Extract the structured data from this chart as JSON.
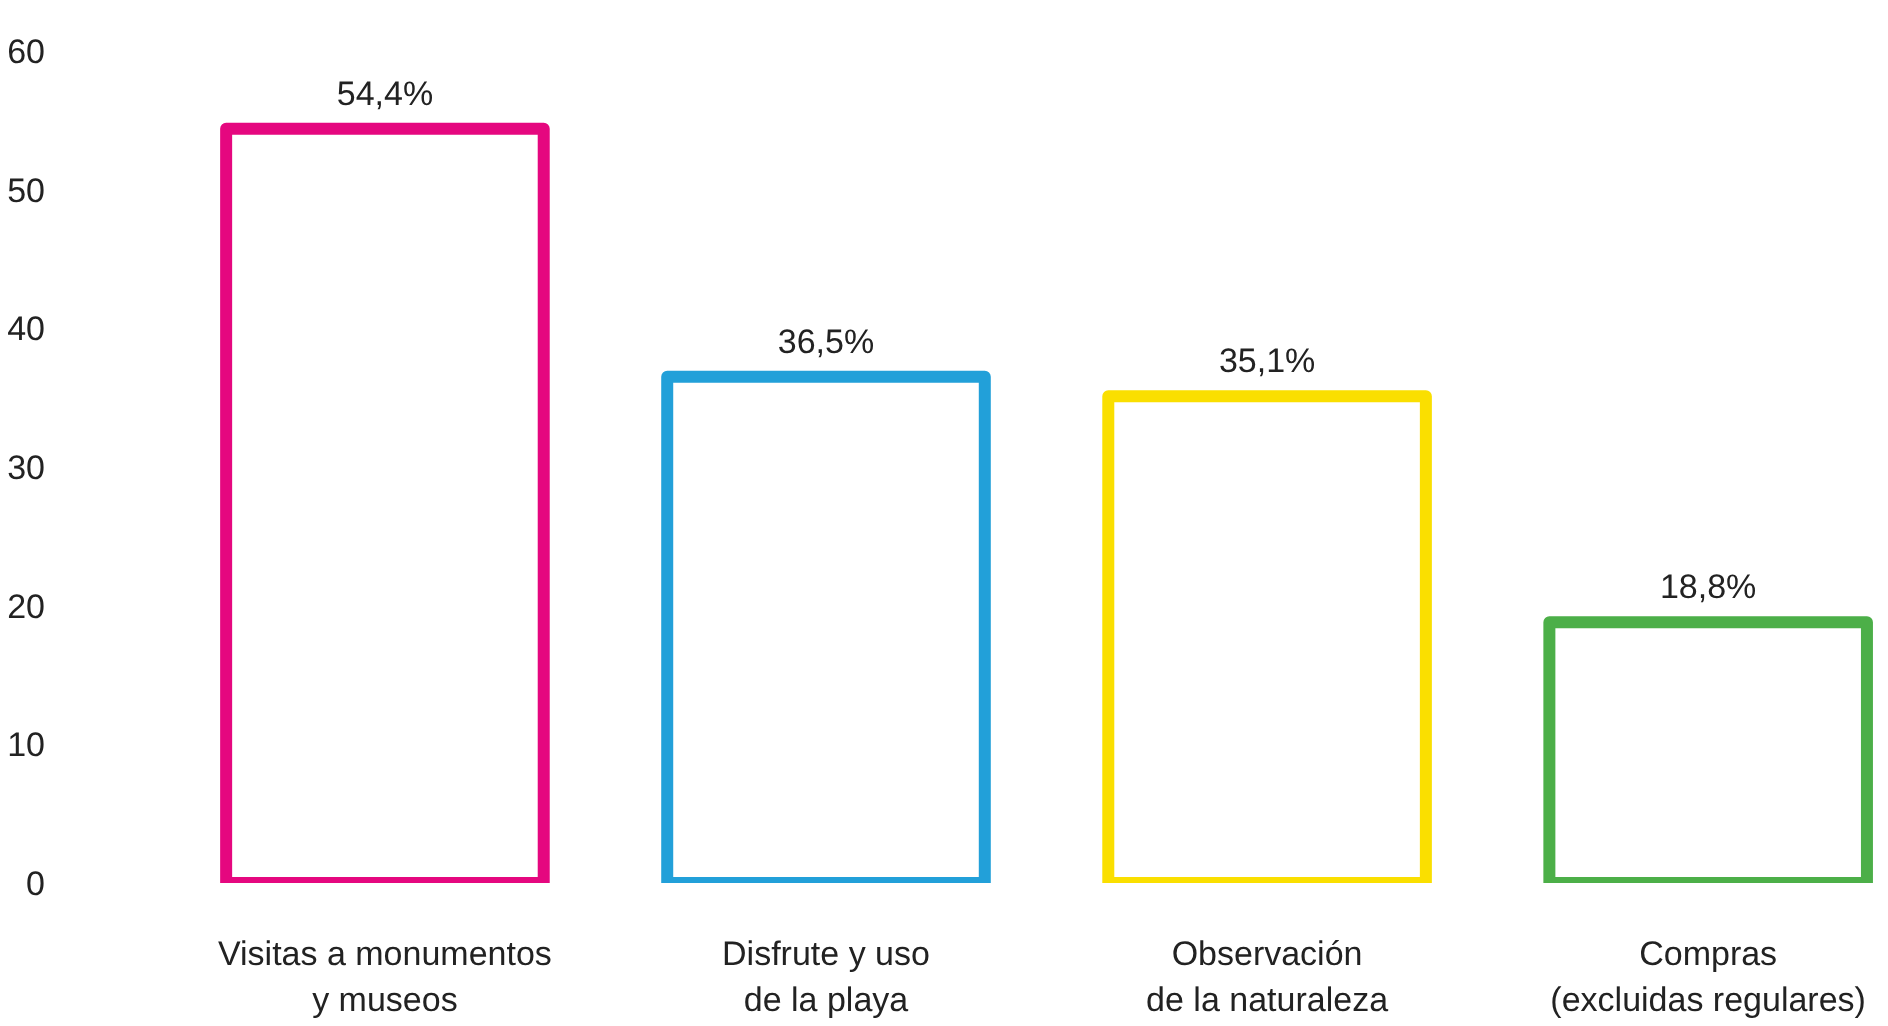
{
  "chart_data": {
    "type": "bar",
    "categories": [
      "Visitas a monumentos\ny museos",
      "Disfrute y uso\nde la playa",
      "Observación\nde la naturaleza",
      "Compras\n(excluidas regulares)"
    ],
    "values": [
      54.4,
      36.5,
      35.1,
      18.8
    ],
    "colors": [
      "#e5077f",
      "#22a0d9",
      "#fadf00",
      "#4caf48"
    ],
    "value_labels": [
      "54,4%",
      "36,5%",
      "35,1%",
      "18,8%"
    ],
    "ylim": [
      0,
      60
    ],
    "yticks": [
      0,
      10,
      20,
      30,
      40,
      50,
      60
    ],
    "grid": false
  }
}
